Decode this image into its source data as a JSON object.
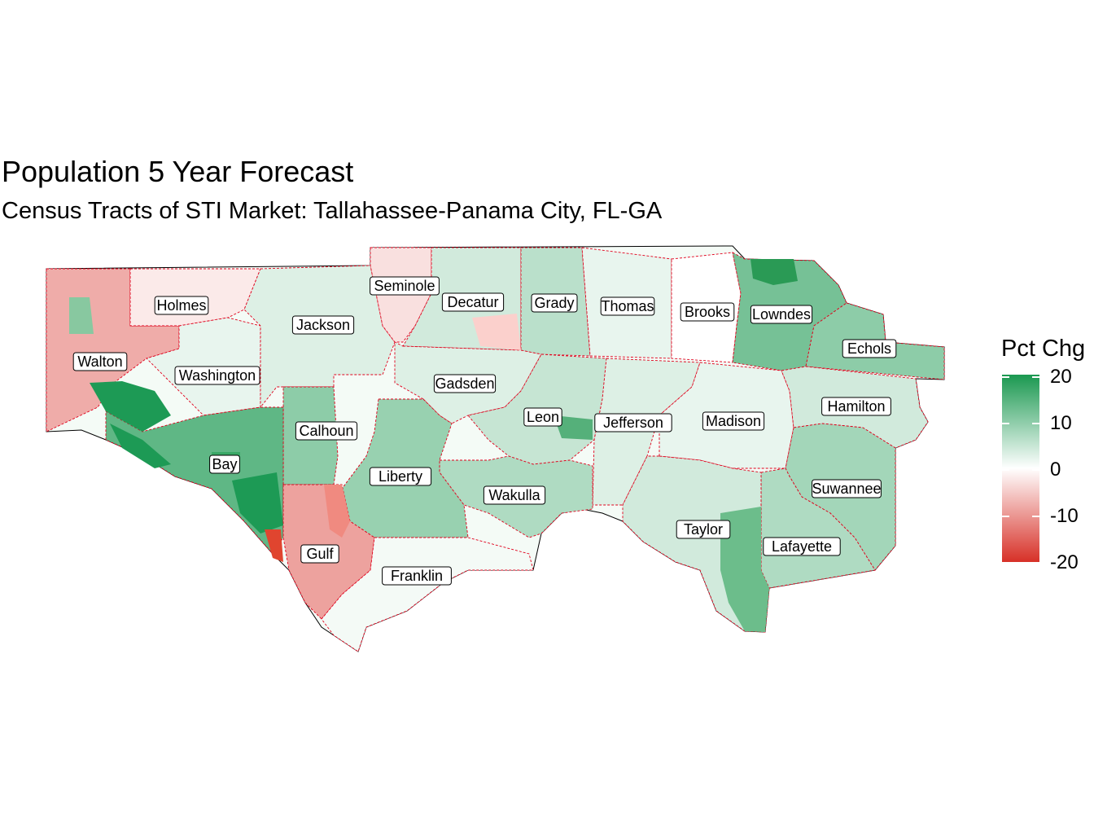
{
  "title": "Population 5 Year Forecast",
  "subtitle": "Census Tracts of STI Market: Tallahassee-Panama City, FL-GA",
  "legend": {
    "title": "Pct Chg",
    "ticks": [
      "20",
      "10",
      "0",
      "-10",
      "-20"
    ],
    "colors": {
      "high": "#1a9850",
      "mid": "#ffffff",
      "low": "#d73027"
    }
  },
  "counties": [
    {
      "name": "Holmes",
      "value": -2
    },
    {
      "name": "Seminole",
      "value": -3
    },
    {
      "name": "Decatur",
      "value": 4
    },
    {
      "name": "Grady",
      "value": 6
    },
    {
      "name": "Thomas",
      "value": 2
    },
    {
      "name": "Brooks",
      "value": 0
    },
    {
      "name": "Lowndes",
      "value": 12
    },
    {
      "name": "Jackson",
      "value": 3
    },
    {
      "name": "Echols",
      "value": 10
    },
    {
      "name": "Walton",
      "value": -8
    },
    {
      "name": "Washington",
      "value": 2
    },
    {
      "name": "Gadsden",
      "value": 3
    },
    {
      "name": "Hamilton",
      "value": 4
    },
    {
      "name": "Leon",
      "value": 5
    },
    {
      "name": "Jefferson",
      "value": 3
    },
    {
      "name": "Madison",
      "value": 2
    },
    {
      "name": "Calhoun",
      "value": 10
    },
    {
      "name": "Bay",
      "value": 14
    },
    {
      "name": "Suwannee",
      "value": 8
    },
    {
      "name": "Liberty",
      "value": 9
    },
    {
      "name": "Wakulla",
      "value": 7
    },
    {
      "name": "Taylor",
      "value": 4
    },
    {
      "name": "Lafayette",
      "value": 7
    },
    {
      "name": "Gulf",
      "value": -9
    },
    {
      "name": "Franklin",
      "value": 1
    }
  ]
}
